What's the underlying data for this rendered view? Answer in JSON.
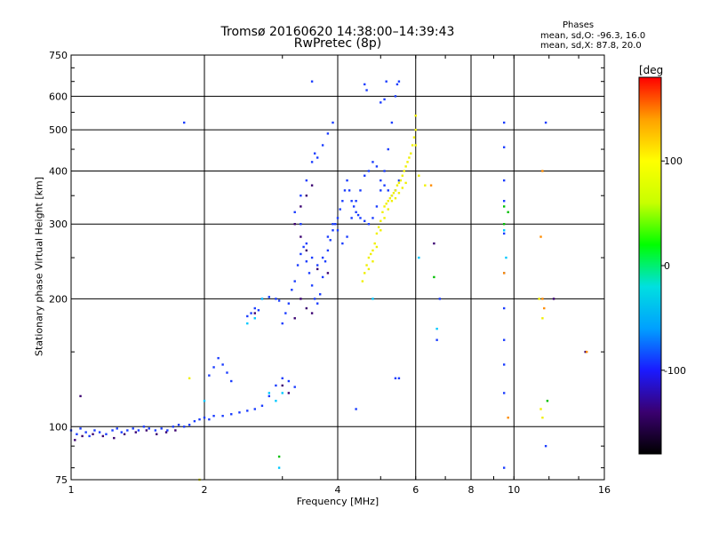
{
  "chart_data": {
    "type": "scatter",
    "title": "Tromsø 20160620 14:38:00–14:39:43",
    "subtitle": "RwPretec (8p)",
    "xlabel": "Frequency [MHz]",
    "ylabel": "Stationary phase Virtual Height [km]",
    "x_scale": "log",
    "y_scale": "log",
    "xlim": [
      1,
      16
    ],
    "ylim": [
      75,
      750
    ],
    "x_ticks": [
      1,
      2,
      4,
      6,
      8,
      10,
      16
    ],
    "x_tick_labels": [
      "1",
      "2",
      "4",
      "6",
      "8",
      "10",
      "16"
    ],
    "x_grid_lines": [
      2,
      4,
      6,
      8,
      10
    ],
    "y_ticks": [
      75,
      100,
      200,
      300,
      400,
      500,
      600,
      750
    ],
    "y_tick_labels": [
      "75",
      "100",
      "200",
      "300",
      "400",
      "500",
      "600",
      "750"
    ],
    "y_grid_lines": [
      100,
      200,
      300,
      400,
      500,
      600
    ],
    "grid": true,
    "phases": {
      "heading": "Phases",
      "o_line": "mean, sd,O: -96.3, 16.0",
      "x_line": "mean, sd,X:  87.8, 20.0"
    },
    "colorbar": {
      "label": "[deg",
      "ticks": [
        100,
        0,
        -100
      ],
      "tick_labels": [
        "100",
        "0",
        "-100"
      ],
      "range": [
        -180,
        180
      ],
      "colors": [
        "#000000",
        "#3a0070",
        "#1a1aff",
        "#00a0ff",
        "#00e0e0",
        "#00ff00",
        "#c8ff00",
        "#ffff00",
        "#ffa000",
        "#ff0000"
      ]
    },
    "series": [
      {
        "color": "#1a3cff",
        "points": [
          [
            1.0,
            98
          ],
          [
            1.03,
            96
          ],
          [
            1.05,
            99
          ],
          [
            1.08,
            97
          ],
          [
            1.1,
            95
          ],
          [
            1.13,
            98
          ],
          [
            1.16,
            97
          ],
          [
            1.2,
            96
          ],
          [
            1.24,
            98
          ],
          [
            1.27,
            99
          ],
          [
            1.3,
            97
          ],
          [
            1.34,
            98
          ],
          [
            1.38,
            99
          ],
          [
            1.42,
            98
          ],
          [
            1.46,
            100
          ],
          [
            1.5,
            99
          ],
          [
            1.55,
            98
          ],
          [
            1.6,
            99
          ],
          [
            1.65,
            98
          ],
          [
            1.7,
            100
          ],
          [
            1.75,
            101
          ],
          [
            1.8,
            100
          ],
          [
            1.85,
            101
          ],
          [
            1.9,
            103
          ],
          [
            1.95,
            104
          ],
          [
            2.0,
            105
          ],
          [
            2.05,
            104
          ],
          [
            2.1,
            106
          ],
          [
            2.2,
            106
          ],
          [
            2.3,
            107
          ],
          [
            2.4,
            108
          ],
          [
            2.5,
            109
          ],
          [
            2.6,
            110
          ],
          [
            2.7,
            112
          ],
          [
            2.8,
            118
          ],
          [
            2.9,
            125
          ],
          [
            3.0,
            130
          ],
          [
            3.1,
            128
          ],
          [
            3.2,
            124
          ],
          [
            2.05,
            132
          ],
          [
            2.1,
            138
          ],
          [
            2.15,
            145
          ],
          [
            2.2,
            140
          ],
          [
            2.25,
            134
          ],
          [
            2.3,
            128
          ],
          [
            2.5,
            182
          ],
          [
            2.55,
            185
          ],
          [
            2.6,
            190
          ],
          [
            2.65,
            188
          ],
          [
            2.7,
            200
          ],
          [
            2.8,
            202
          ],
          [
            2.9,
            200
          ],
          [
            2.95,
            198
          ],
          [
            3.0,
            175
          ],
          [
            3.05,
            185
          ],
          [
            3.1,
            195
          ],
          [
            3.15,
            210
          ],
          [
            3.2,
            220
          ],
          [
            3.25,
            240
          ],
          [
            3.3,
            255
          ],
          [
            3.35,
            265
          ],
          [
            3.4,
            245
          ],
          [
            3.45,
            230
          ],
          [
            3.5,
            215
          ],
          [
            3.55,
            200
          ],
          [
            3.6,
            195
          ],
          [
            3.65,
            205
          ],
          [
            3.7,
            225
          ],
          [
            3.75,
            245
          ],
          [
            3.8,
            260
          ],
          [
            3.85,
            275
          ],
          [
            3.9,
            290
          ],
          [
            3.95,
            300
          ],
          [
            4.0,
            310
          ],
          [
            4.05,
            325
          ],
          [
            4.1,
            340
          ],
          [
            4.15,
            360
          ],
          [
            4.2,
            380
          ],
          [
            4.25,
            360
          ],
          [
            4.3,
            340
          ],
          [
            4.35,
            330
          ],
          [
            4.4,
            320
          ],
          [
            4.45,
            315
          ],
          [
            4.5,
            310
          ],
          [
            4.6,
            305
          ],
          [
            4.7,
            300
          ],
          [
            4.8,
            310
          ],
          [
            4.9,
            330
          ],
          [
            5.0,
            360
          ],
          [
            5.1,
            400
          ],
          [
            5.2,
            450
          ],
          [
            5.3,
            520
          ],
          [
            5.4,
            600
          ],
          [
            5.45,
            640
          ],
          [
            5.5,
            650
          ],
          [
            3.2,
            320
          ],
          [
            3.3,
            350
          ],
          [
            3.4,
            380
          ],
          [
            3.5,
            420
          ],
          [
            3.55,
            440
          ],
          [
            3.6,
            430
          ],
          [
            3.7,
            460
          ],
          [
            3.8,
            490
          ],
          [
            3.9,
            520
          ],
          [
            3.3,
            300
          ],
          [
            3.4,
            270
          ],
          [
            3.5,
            250
          ],
          [
            3.6,
            240
          ],
          [
            3.7,
            250
          ],
          [
            3.8,
            280
          ],
          [
            3.9,
            300
          ],
          [
            4.0,
            290
          ],
          [
            4.1,
            270
          ],
          [
            4.2,
            280
          ],
          [
            4.3,
            310
          ],
          [
            4.4,
            340
          ],
          [
            4.5,
            360
          ],
          [
            4.6,
            390
          ],
          [
            4.7,
            400
          ],
          [
            4.8,
            420
          ],
          [
            4.9,
            410
          ],
          [
            5.0,
            380
          ],
          [
            5.1,
            370
          ],
          [
            5.2,
            360
          ],
          [
            5.3,
            350
          ],
          [
            5.4,
            360
          ],
          [
            5.5,
            380
          ],
          [
            4.6,
            640
          ],
          [
            4.65,
            620
          ],
          [
            5.0,
            580
          ],
          [
            5.1,
            590
          ],
          [
            5.15,
            650
          ],
          [
            3.5,
            650
          ],
          [
            5.4,
            130
          ],
          [
            5.5,
            130
          ],
          [
            4.4,
            110
          ],
          [
            1.8,
            520
          ],
          [
            9.5,
            520
          ],
          [
            9.5,
            455
          ],
          [
            9.5,
            380
          ],
          [
            9.5,
            340
          ],
          [
            9.5,
            285
          ],
          [
            9.5,
            230
          ],
          [
            9.5,
            190
          ],
          [
            9.5,
            160
          ],
          [
            9.5,
            140
          ],
          [
            9.5,
            120
          ],
          [
            9.5,
            80
          ],
          [
            11.8,
            90
          ],
          [
            11.8,
            520
          ],
          [
            6.7,
            160
          ],
          [
            6.8,
            200
          ]
        ]
      },
      {
        "color": "#f0f000",
        "points": [
          [
            4.55,
            220
          ],
          [
            4.6,
            230
          ],
          [
            4.65,
            240
          ],
          [
            4.7,
            250
          ],
          [
            4.75,
            255
          ],
          [
            4.8,
            260
          ],
          [
            4.85,
            270
          ],
          [
            4.9,
            285
          ],
          [
            4.95,
            295
          ],
          [
            5.0,
            305
          ],
          [
            5.05,
            320
          ],
          [
            5.1,
            330
          ],
          [
            5.15,
            335
          ],
          [
            5.2,
            340
          ],
          [
            5.25,
            345
          ],
          [
            5.3,
            350
          ],
          [
            5.35,
            355
          ],
          [
            5.4,
            360
          ],
          [
            5.45,
            370
          ],
          [
            5.5,
            375
          ],
          [
            5.55,
            380
          ],
          [
            5.6,
            390
          ],
          [
            5.65,
            400
          ],
          [
            5.7,
            410
          ],
          [
            5.75,
            420
          ],
          [
            5.8,
            430
          ],
          [
            5.85,
            440
          ],
          [
            5.9,
            460
          ],
          [
            5.95,
            480
          ],
          [
            6.0,
            500
          ],
          [
            6.0,
            540
          ],
          [
            4.7,
            235
          ],
          [
            4.8,
            245
          ],
          [
            4.9,
            265
          ],
          [
            5.0,
            290
          ],
          [
            5.1,
            310
          ],
          [
            5.2,
            325
          ],
          [
            5.3,
            340
          ],
          [
            5.4,
            345
          ],
          [
            5.5,
            355
          ],
          [
            5.6,
            365
          ],
          [
            5.7,
            375
          ],
          [
            6.0,
            460
          ],
          [
            6.1,
            390
          ],
          [
            6.3,
            370
          ],
          [
            11.5,
            110
          ],
          [
            11.6,
            105
          ],
          [
            11.6,
            180
          ],
          [
            11.4,
            200
          ],
          [
            1.85,
            130
          ],
          [
            1.95,
            75
          ]
        ]
      },
      {
        "color": "#3a0070",
        "points": [
          [
            1.02,
            93
          ],
          [
            1.06,
            95
          ],
          [
            1.12,
            96
          ],
          [
            1.18,
            95
          ],
          [
            1.25,
            94
          ],
          [
            1.32,
            96
          ],
          [
            1.4,
            97
          ],
          [
            1.48,
            98
          ],
          [
            1.56,
            96
          ],
          [
            1.64,
            97
          ],
          [
            1.72,
            98
          ],
          [
            3.2,
            300
          ],
          [
            3.3,
            280
          ],
          [
            3.4,
            260
          ],
          [
            3.6,
            235
          ],
          [
            3.8,
            230
          ],
          [
            3.3,
            200
          ],
          [
            3.4,
            190
          ],
          [
            3.5,
            185
          ],
          [
            3.2,
            180
          ],
          [
            3.3,
            330
          ],
          [
            3.4,
            350
          ],
          [
            3.5,
            370
          ],
          [
            2.6,
            185
          ],
          [
            3.0,
            125
          ],
          [
            3.1,
            120
          ],
          [
            1.05,
            118
          ],
          [
            6.6,
            270
          ],
          [
            14.5,
            150
          ],
          [
            12.3,
            200
          ]
        ]
      },
      {
        "color": "#00c8ff",
        "points": [
          [
            2.0,
            115
          ],
          [
            2.5,
            175
          ],
          [
            2.6,
            180
          ],
          [
            2.7,
            200
          ],
          [
            2.8,
            120
          ],
          [
            2.9,
            115
          ],
          [
            3.0,
            120
          ],
          [
            2.95,
            80
          ],
          [
            4.8,
            200
          ],
          [
            6.1,
            250
          ],
          [
            9.5,
            290
          ],
          [
            9.6,
            250
          ],
          [
            6.7,
            170
          ]
        ]
      },
      {
        "color": "#00c000",
        "points": [
          [
            9.5,
            330
          ],
          [
            9.7,
            320
          ],
          [
            11.9,
            115
          ],
          [
            6.6,
            225
          ],
          [
            2.95,
            85
          ],
          [
            9.5,
            300
          ]
        ]
      },
      {
        "color": "#ff8c00",
        "points": [
          [
            9.5,
            230
          ],
          [
            11.6,
            400
          ],
          [
            11.5,
            280
          ],
          [
            11.6,
            200
          ],
          [
            11.7,
            190
          ],
          [
            6.5,
            370
          ],
          [
            14.6,
            150
          ],
          [
            9.7,
            105
          ]
        ]
      }
    ]
  }
}
